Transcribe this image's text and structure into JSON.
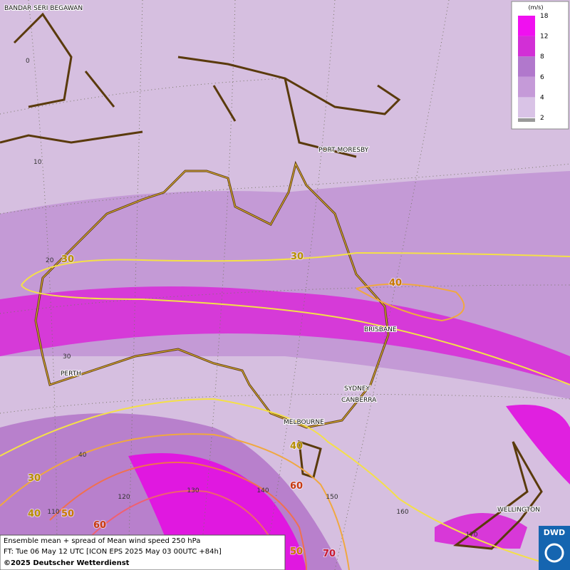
{
  "map": {
    "cities": [
      "BANDAR SERI BEGAWAN",
      "PORT MORESBY",
      "BRISBANE",
      "PERTH",
      "SYDNEY",
      "CANBERRA",
      "MELBOURNE",
      "WELLINGTON"
    ],
    "lat_labels": [
      0,
      10,
      20,
      30,
      40
    ],
    "lon_labels": [
      110,
      120,
      130,
      140,
      150,
      160,
      170
    ],
    "contour_labels": [
      30,
      30,
      40,
      40,
      60,
      30,
      40,
      50,
      60,
      50,
      70
    ]
  },
  "legend": {
    "unit": "(m/s)",
    "ticks": [
      2,
      4,
      6,
      8,
      12,
      18
    ],
    "colors": [
      "#d9c3e6",
      "#c59ad8",
      "#b178cc",
      "#d22fd6",
      "#f010f0"
    ]
  },
  "footer": {
    "line1": "Ensemble mean + spread of Mean wind speed 250 hPa",
    "line2": "FT: Tue 06 May 12 UTC [ICON EPS 2025 May 03 00UTC +84h]",
    "line3": "©2025 Deutscher Wetterdienst"
  },
  "logo": "DWD"
}
